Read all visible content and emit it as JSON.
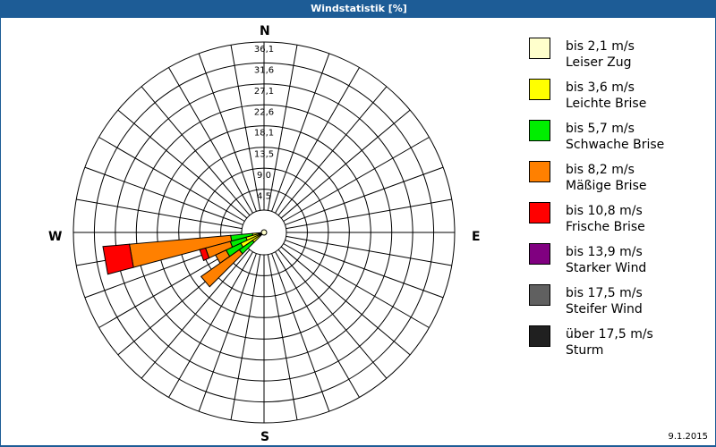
{
  "title": "Windstatistik [%]",
  "date": "9.1.2015",
  "compass": {
    "n": "N",
    "e": "E",
    "s": "S",
    "w": "W"
  },
  "legend": [
    {
      "line1": "bis 2,1 m/s",
      "line2": "Leiser Zug",
      "color": "#ffffcc"
    },
    {
      "line1": "bis 3,6 m/s",
      "line2": "Leichte Brise",
      "color": "#ffff00"
    },
    {
      "line1": "bis 5,7 m/s",
      "line2": "Schwache Brise",
      "color": "#00ee00"
    },
    {
      "line1": "bis 8,2 m/s",
      "line2": "Mäßige Brise",
      "color": "#ff8000"
    },
    {
      "line1": "bis 10,8 m/s",
      "line2": "Frische Brise",
      "color": "#ff0000"
    },
    {
      "line1": "bis 13,9 m/s",
      "line2": "Starker Wind",
      "color": "#800080"
    },
    {
      "line1": "bis 17,5 m/s",
      "line2": "Steifer Wind",
      "color": "#606060"
    },
    {
      "line1": "über 17,5 m/s",
      "line2": "Sturm",
      "color": "#202020"
    }
  ],
  "chart_data": {
    "type": "polar-bar (wind rose)",
    "title": "Windstatistik [%]",
    "radial_ticks": [
      4.5,
      9.0,
      13.5,
      18.1,
      22.6,
      27.1,
      31.6,
      36.1
    ],
    "radial_tick_labels": [
      "4,5",
      "9,0",
      "13,5",
      "18,1",
      "22,6",
      "27,1",
      "31,6",
      "36,1"
    ],
    "rmax": 36.1,
    "angular_grid_deg": 10,
    "direction_labels": [
      "N",
      "E",
      "S",
      "W"
    ],
    "series_names": [
      "bis 2,1 m/s",
      "bis 3,6 m/s",
      "bis 5,7 m/s",
      "bis 8,2 m/s",
      "bis 10,8 m/s",
      "bis 13,9 m/s",
      "bis 17,5 m/s",
      "über 17,5 m/s"
    ],
    "sectors": [
      {
        "direction_deg": 260,
        "cumulative": [
          0.3,
          2.5,
          7.2,
          29.0,
          34.7,
          34.7,
          34.7,
          34.7
        ]
      },
      {
        "direction_deg": 250,
        "cumulative": [
          0.3,
          4.0,
          7.5,
          13.0,
          14.3,
          14.3,
          14.3,
          14.3
        ]
      },
      {
        "direction_deg": 240,
        "cumulative": [
          0.3,
          5.5,
          9.0,
          11.5,
          11.5,
          11.5,
          11.5,
          11.5
        ]
      },
      {
        "direction_deg": 230,
        "cumulative": [
          0.3,
          3.0,
          6.5,
          16.5,
          16.5,
          16.5,
          16.5,
          16.5
        ]
      }
    ]
  }
}
